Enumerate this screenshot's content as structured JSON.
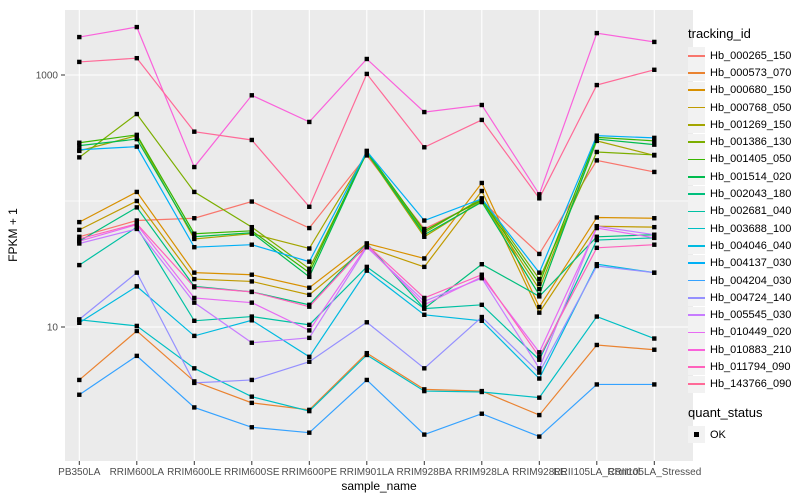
{
  "figure": {
    "y_axis_title": "FPKM + 1",
    "x_axis_title": "sample_name"
  },
  "legend": {
    "tracking_title": "tracking_id",
    "quant_title": "quant_status",
    "quant_items": [
      {
        "label": "OK"
      }
    ]
  },
  "style": {
    "panel_bg": "#EBEBEB",
    "grid_color": "#FFFFFF",
    "tick_color": "#333333",
    "tick_text_color": "#4D4D4D",
    "point_color": "#000000",
    "legend_key_bg": "#F2F2F2"
  },
  "chart_data": {
    "type": "line",
    "title": "",
    "xlabel": "sample_name",
    "ylabel": "FPKM + 1",
    "y_scale": "log10",
    "y_breaks": [
      1000,
      10
    ],
    "y_minor_breaks": [
      100
    ],
    "ylim": [
      0.87,
      3300
    ],
    "grid": true,
    "legend_position": "right",
    "point_marker": "black-square",
    "quant_status": "OK",
    "categories": [
      "PB350LA",
      "RRIM600LA",
      "RRIM600LE",
      "RRIM600SE",
      "RRIM600PE",
      "RRIM901LA",
      "RRIM928BA",
      "RRIM928LA",
      "RRIM928LE",
      "RRII105LA_Control",
      "RRII105LA_Stressed"
    ],
    "series": [
      {
        "name": "Hb_000265_150",
        "color": "#F8766D",
        "values": [
          52,
          70,
          73,
          99,
          61,
          230,
          60,
          100,
          38,
          210,
          170
        ]
      },
      {
        "name": "Hb_000573_070",
        "color": "#EA8331",
        "values": [
          3.8,
          9.3,
          3.7,
          2.5,
          2.2,
          6.2,
          3.2,
          3.1,
          2.0,
          7.2,
          6.6
        ]
      },
      {
        "name": "Hb_000680_150",
        "color": "#D89000",
        "values": [
          68,
          118,
          27,
          26,
          20.5,
          46,
          35,
          139,
          14.4,
          74,
          73
        ]
      },
      {
        "name": "Hb_000768_050",
        "color": "#C09B00",
        "values": [
          59,
          100,
          24,
          23,
          18,
          43,
          30,
          120,
          13,
          63,
          62
        ]
      },
      {
        "name": "Hb_001269_150",
        "color": "#A3A500",
        "values": [
          250,
          330,
          50,
          55,
          42,
          240,
          52,
          100,
          20,
          300,
          230
        ]
      },
      {
        "name": "Hb_001386_130",
        "color": "#7CAE00",
        "values": [
          222,
          490,
          118,
          62,
          29,
          240,
          56,
          105,
          24,
          245,
          232
        ]
      },
      {
        "name": "Hb_001405_050",
        "color": "#39B600",
        "values": [
          290,
          335,
          55,
          58,
          27,
          250,
          58,
          102,
          22,
          320,
          300
        ]
      },
      {
        "name": "Hb_001514_020",
        "color": "#00BB4E",
        "values": [
          275,
          310,
          52,
          56,
          25,
          245,
          54,
          98,
          18,
          310,
          280
        ]
      },
      {
        "name": "Hb_002043_180",
        "color": "#00BF7D",
        "values": [
          48,
          89,
          21,
          19,
          15,
          46,
          14,
          31.5,
          17.5,
          52,
          54
        ]
      },
      {
        "name": "Hb_002681_040",
        "color": "#00C1A3",
        "values": [
          31,
          62,
          11.2,
          12.1,
          10.4,
          30,
          14,
          15,
          5.5,
          49,
          51
        ]
      },
      {
        "name": "Hb_003688_100",
        "color": "#00BFC4",
        "values": [
          11.4,
          10.2,
          4.7,
          2.8,
          2.15,
          6.0,
          3.1,
          3.05,
          2.75,
          12.1,
          8.1
        ]
      },
      {
        "name": "Hb_004046_040",
        "color": "#00BAE0",
        "values": [
          10.8,
          21,
          8.5,
          11.3,
          5.8,
          28,
          12.5,
          11.2,
          3.9,
          31.5,
          27
        ]
      },
      {
        "name": "Hb_004137_030",
        "color": "#00B0F6",
        "values": [
          255,
          270,
          43,
          45,
          33,
          248,
          70,
          104,
          27,
          330,
          317
        ]
      },
      {
        "name": "Hb_004204_030",
        "color": "#35A2FF",
        "values": [
          2.9,
          5.9,
          2.3,
          1.6,
          1.45,
          3.8,
          1.4,
          2.05,
          1.35,
          3.5,
          3.5
        ]
      },
      {
        "name": "Hb_004724_140",
        "color": "#9590FF",
        "values": [
          11.5,
          27,
          3.6,
          3.8,
          5.3,
          10.9,
          4.7,
          12,
          4.35,
          30.5,
          27
        ]
      },
      {
        "name": "Hb_005545_030",
        "color": "#C77CFF",
        "values": [
          46,
          60,
          15.6,
          7.5,
          8.2,
          43,
          16,
          24.4,
          4.7,
          63,
          54
        ]
      },
      {
        "name": "Hb_010449_020",
        "color": "#E76BF3",
        "values": [
          48,
          65,
          17,
          15.6,
          9.4,
          44,
          15,
          25,
          6.3,
          61,
          51
        ]
      },
      {
        "name": "Hb_010883_210",
        "color": "#FA62DB",
        "values": [
          2000,
          2400,
          186,
          690,
          424,
          1340,
          508,
          578,
          113,
          2150,
          1830
        ]
      },
      {
        "name": "Hb_011794_090",
        "color": "#FF62BC",
        "values": [
          50,
          66,
          20.7,
          19,
          14.5,
          45,
          17,
          26,
          5.8,
          42.5,
          45
        ]
      },
      {
        "name": "Hb_143766_090",
        "color": "#FF6A98",
        "values": [
          1270,
          1360,
          355,
          305,
          90,
          1020,
          267,
          440,
          105,
          832,
          1100
        ]
      }
    ]
  }
}
